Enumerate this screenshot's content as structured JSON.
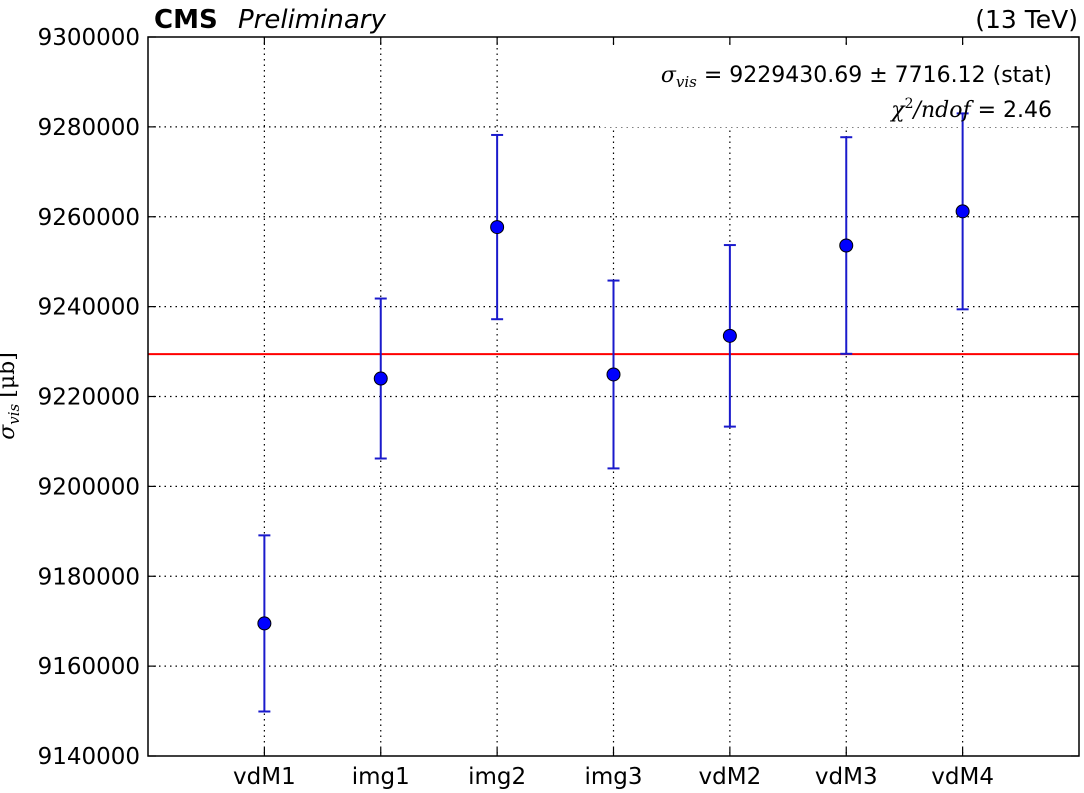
{
  "header": {
    "experiment": "CMS",
    "status": "Preliminary",
    "energy": "(13 TeV)"
  },
  "chart_data": {
    "type": "scatter",
    "title": "",
    "ylabel": "σ_vis [μb]",
    "ylabel_symbol": "σ",
    "ylabel_sub": "vis",
    "ylabel_unit": "[μb]",
    "ylim": [
      9140000,
      9300000
    ],
    "yticks": [
      9140000,
      9160000,
      9180000,
      9200000,
      9220000,
      9240000,
      9260000,
      9280000,
      9300000
    ],
    "categories": [
      "vdM1",
      "img1",
      "img2",
      "img3",
      "vdM2",
      "vdM3",
      "vdM4"
    ],
    "values": [
      9169500,
      9224000,
      9257700,
      9224900,
      9233500,
      9253600,
      9261200
    ],
    "errors": [
      19600,
      17800,
      20500,
      20900,
      20200,
      24100,
      21800
    ],
    "grid": true,
    "fit": {
      "value": 9229430.69,
      "stat_error": 7716.12,
      "chi2_ndof": 2.46,
      "color": "#ff0000"
    },
    "annotation": {
      "sigma_symbol": "σ",
      "sigma_sub": "vis",
      "fit_text": " = 9229430.69 ± 7716.12 (stat)",
      "chi2_symbol": "χ",
      "chi2_sup": "2",
      "chi2_rest": "/ndof",
      "chi2_text": " = 2.46"
    },
    "marker_color": "#0000ff",
    "error_color": "#1a1acc"
  }
}
